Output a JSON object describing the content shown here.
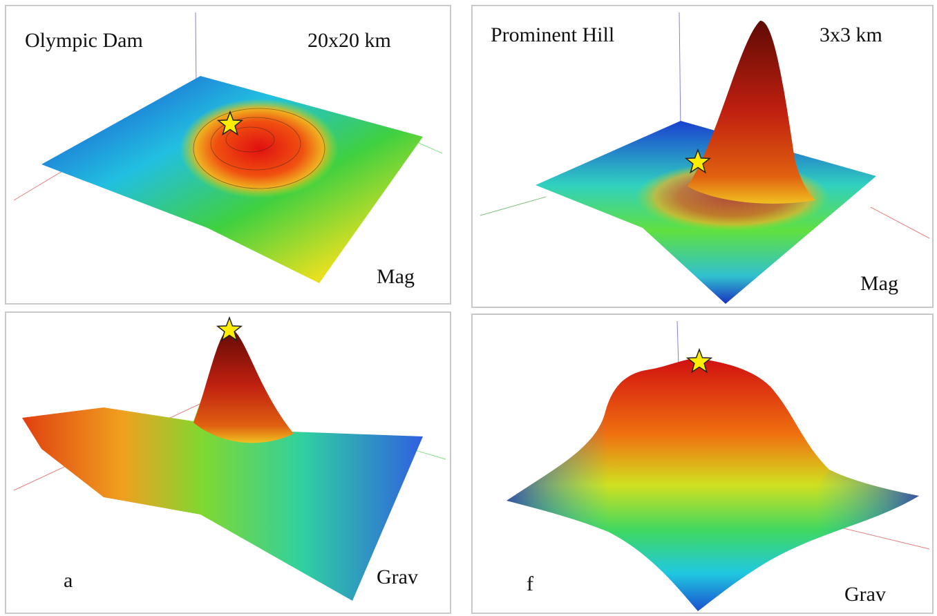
{
  "panels": [
    {
      "title": "Olympic Dam",
      "size": "20x20 km",
      "field": "Mag"
    },
    {
      "title": "Prominent Hill",
      "size": "3x3 km",
      "field": "Mag"
    },
    {
      "letter": "a",
      "field": "Grav"
    },
    {
      "letter": "f",
      "field": "Grav"
    }
  ]
}
